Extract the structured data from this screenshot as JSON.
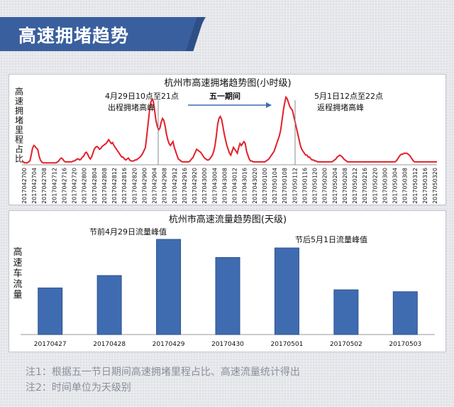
{
  "banner": {
    "title": "高速拥堵趋势"
  },
  "notes": [
    "注1：根据五一节日期间高速拥堵里程占比、高速流量统计得出",
    "注2：时间单位为天级别"
  ],
  "colors": {
    "banner": "#3a5f9e",
    "line": "#e3202a",
    "bar": "#3f6bb0",
    "arrow": "#3f6bb0"
  },
  "chart_data": [
    {
      "type": "line",
      "title": "杭州市高速拥堵趋势图(小时级)",
      "ylabel": "高速拥堵里程占比",
      "annotations": [
        {
          "text": "4月29日10点至21点"
        },
        {
          "text": "出程拥堵高峰"
        },
        {
          "text": "五一期间"
        },
        {
          "text": "5月1日12点至22点"
        },
        {
          "text": "返程拥堵高峰"
        }
      ],
      "x_tick_labels": [
        "2017042700",
        "2017042704",
        "2017042708",
        "2017042712",
        "2017042716",
        "2017042720",
        "2017042800",
        "2017042804",
        "2017042808",
        "2017042812",
        "2017042816",
        "2017042820",
        "2017042900",
        "2017042904",
        "2017042908",
        "2017042912",
        "2017042916",
        "2017042920",
        "2017043000",
        "2017043004",
        "2017043008",
        "2017043012",
        "2017043016",
        "2017043020",
        "2017050100",
        "2017050104",
        "2017050108",
        "2017050112",
        "2017050116",
        "2017050120",
        "2017050200",
        "2017050204",
        "2017050208",
        "2017050212",
        "2017050216",
        "2017050220",
        "2017050300",
        "2017050304",
        "2017050308",
        "2017050312",
        "2017050316",
        "2017050320"
      ],
      "series": [
        {
          "values": [
            3,
            3,
            2,
            2,
            2,
            3,
            4,
            10,
            17,
            20,
            19,
            17,
            16,
            9,
            5,
            3,
            2,
            2,
            2,
            2,
            2,
            2,
            2,
            2,
            2,
            2,
            2,
            3,
            4,
            6,
            7,
            6,
            4,
            3,
            3,
            3,
            3,
            3,
            3,
            4,
            4,
            5,
            6,
            6,
            5,
            6,
            8,
            9,
            12,
            13,
            11,
            8,
            6,
            8,
            12,
            16,
            18,
            19,
            18,
            16,
            17,
            19,
            20,
            21,
            22,
            24,
            26,
            24,
            22,
            23,
            20,
            18,
            16,
            14,
            12,
            10,
            8,
            8,
            6,
            5,
            6,
            7,
            5,
            4,
            4,
            4,
            5,
            5,
            6,
            7,
            8,
            10,
            12,
            15,
            18,
            30,
            42,
            55,
            64,
            68,
            66,
            56,
            46,
            40,
            36,
            38,
            44,
            48,
            46,
            40,
            32,
            26,
            22,
            20,
            22,
            24,
            18,
            14,
            10,
            6,
            5,
            4,
            3,
            3,
            3,
            3,
            3,
            3,
            4,
            6,
            7,
            10,
            13,
            16,
            15,
            14,
            13,
            11,
            9,
            7,
            6,
            5,
            5,
            6,
            8,
            10,
            14,
            20,
            30,
            42,
            48,
            50,
            47,
            40,
            32,
            26,
            20,
            16,
            12,
            10,
            14,
            18,
            16,
            14,
            12,
            18,
            22,
            20,
            22,
            24,
            22,
            14,
            10,
            6,
            4,
            4,
            3,
            3,
            3,
            3,
            3,
            3,
            3,
            3,
            3,
            3,
            4,
            5,
            6,
            8,
            10,
            12,
            14,
            18,
            22,
            26,
            30,
            36,
            46,
            56,
            64,
            70,
            68,
            64,
            60,
            58,
            56,
            50,
            44,
            38,
            32,
            26,
            20,
            16,
            14,
            12,
            10,
            10,
            8,
            8,
            6,
            5,
            5,
            4,
            4,
            3,
            3,
            3,
            3,
            3,
            3,
            3,
            3,
            3,
            3,
            3,
            3,
            4,
            5,
            6,
            8,
            9,
            10,
            9,
            8,
            6,
            5,
            4,
            3,
            3,
            3,
            3,
            3,
            3,
            3,
            3,
            3,
            3,
            3,
            3,
            3,
            3,
            3,
            3,
            3,
            3,
            3,
            3,
            3,
            3,
            3,
            3,
            3,
            3,
            3,
            3,
            3,
            3,
            3,
            3,
            3,
            3,
            3,
            3,
            3,
            4,
            6,
            8,
            10,
            11,
            11,
            12,
            12,
            12,
            11,
            10,
            8,
            6,
            4,
            3,
            3,
            3,
            3,
            3,
            3,
            3,
            3,
            3,
            3,
            3,
            3,
            3,
            3,
            3,
            3,
            3,
            3
          ]
        }
      ],
      "ylim": [
        0,
        75
      ]
    },
    {
      "type": "bar",
      "title": "杭州市高速流量趋势图(天级)",
      "ylabel": "高速车流量",
      "categories": [
        "20170427",
        "20170428",
        "20170429",
        "20170430",
        "20170501",
        "20170502",
        "20170503"
      ],
      "values": [
        49,
        62,
        100,
        81,
        91,
        47,
        45
      ],
      "ylim": [
        0,
        105
      ],
      "annotations": [
        {
          "text": "节前4月29日流量峰值"
        },
        {
          "text": "节后5月1日流量峰值"
        }
      ]
    }
  ]
}
